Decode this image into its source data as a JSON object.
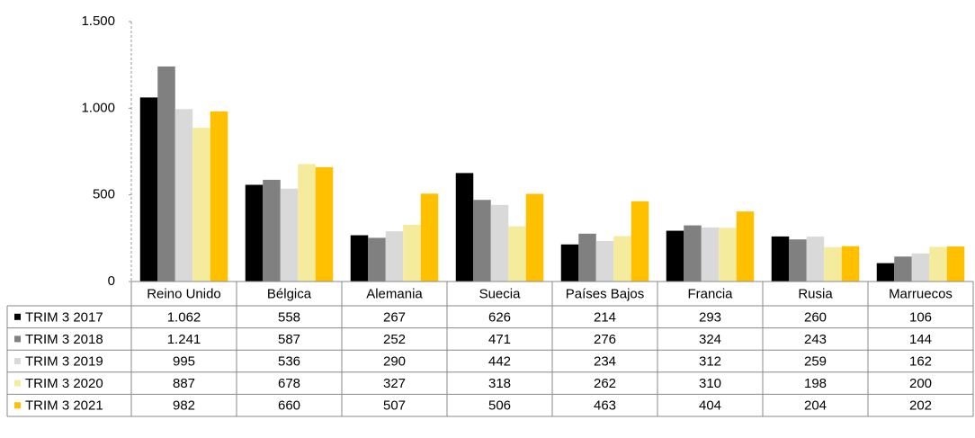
{
  "chart_data": {
    "type": "bar",
    "categories": [
      "Reino Unido",
      "Bélgica",
      "Alemania",
      "Suecia",
      "Países Bajos",
      "Francia",
      "Rusia",
      "Marruecos"
    ],
    "series": [
      {
        "name": "TRIM 3 2017",
        "color": "#000000",
        "values": [
          1062,
          558,
          267,
          626,
          214,
          293,
          260,
          106
        ],
        "value_labels": [
          "1.062",
          "558",
          "267",
          "626",
          "214",
          "293",
          "260",
          "106"
        ]
      },
      {
        "name": "TRIM 3 2018",
        "color": "#808080",
        "values": [
          1241,
          587,
          252,
          471,
          276,
          324,
          243,
          144
        ],
        "value_labels": [
          "1.241",
          "587",
          "252",
          "471",
          "276",
          "324",
          "243",
          "144"
        ]
      },
      {
        "name": "TRIM 3 2019",
        "color": "#d9d9d9",
        "values": [
          995,
          536,
          290,
          442,
          234,
          312,
          259,
          162
        ],
        "value_labels": [
          "995",
          "536",
          "290",
          "442",
          "234",
          "312",
          "259",
          "162"
        ]
      },
      {
        "name": "TRIM 3 2020",
        "color": "#f4ec9c",
        "values": [
          887,
          678,
          327,
          318,
          262,
          310,
          198,
          200
        ],
        "value_labels": [
          "887",
          "678",
          "327",
          "318",
          "262",
          "310",
          "198",
          "200"
        ]
      },
      {
        "name": "TRIM 3 2021",
        "color": "#ffc000",
        "values": [
          982,
          660,
          507,
          506,
          463,
          404,
          204,
          202
        ],
        "value_labels": [
          "982",
          "660",
          "507",
          "506",
          "463",
          "404",
          "204",
          "202"
        ]
      }
    ],
    "ylim": [
      0,
      1500
    ],
    "yticks": [
      0,
      500,
      {
        "value": 1000,
        "label": "1.000"
      },
      {
        "value": 1500,
        "label": "1.500"
      }
    ],
    "grid": false
  }
}
